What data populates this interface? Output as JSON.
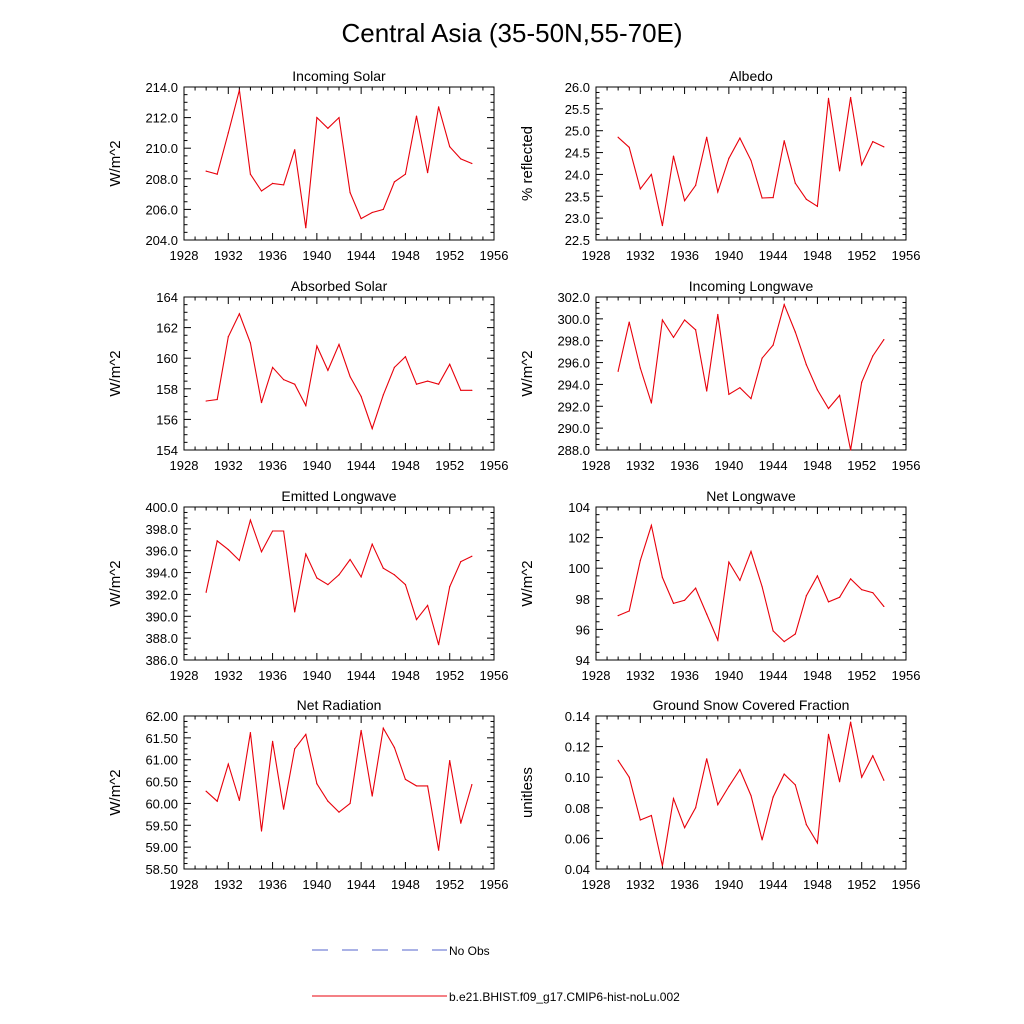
{
  "figure": {
    "title": "Central Asia (35-50N,55-70E)"
  },
  "legend": {
    "items": [
      {
        "label": "No Obs",
        "color": "#5566cc",
        "style": "dashed"
      },
      {
        "label": "b.e21.BHIST.f09_g17.CMIP6-hist-noLu.002",
        "color": "#e8000b",
        "style": "solid"
      }
    ]
  },
  "chart_data": [
    {
      "type": "line",
      "title": "Incoming Solar",
      "xlabel": "",
      "ylabel": "W/m^2",
      "xlim": [
        1928,
        1956
      ],
      "ylim": [
        204,
        214
      ],
      "xticks": [
        "1928",
        "1932",
        "1936",
        "1940",
        "1944",
        "1948",
        "1952",
        "1956"
      ],
      "yticks": [
        "204.0",
        "206.0",
        "208.0",
        "210.0",
        "212.0",
        "214.0"
      ],
      "ytick_values": [
        204,
        206,
        208,
        210,
        212,
        214
      ],
      "series": [
        {
          "color": "#e8000b",
          "x": [
            1930,
            1931,
            1932,
            1933,
            1934,
            1935,
            1936,
            1937,
            1938,
            1939,
            1940,
            1941,
            1942,
            1943,
            1944,
            1945,
            1946,
            1947,
            1948,
            1949,
            1950,
            1951,
            1952,
            1953,
            1954
          ],
          "values": [
            208.5,
            208.3,
            211.0,
            213.8,
            208.3,
            207.2,
            207.7,
            207.6,
            209.9,
            204.8,
            212.0,
            211.3,
            212.0,
            207.1,
            205.4,
            205.8,
            206.0,
            207.8,
            208.3,
            212.1,
            208.4,
            212.7,
            210.1,
            209.3,
            209.0
          ]
        }
      ]
    },
    {
      "type": "line",
      "title": "Albedo",
      "xlabel": "",
      "ylabel": "% reflected",
      "xlim": [
        1928,
        1956
      ],
      "ylim": [
        22.5,
        26
      ],
      "xticks": [
        "1928",
        "1932",
        "1936",
        "1940",
        "1944",
        "1948",
        "1952",
        "1956"
      ],
      "yticks": [
        "22.5",
        "23.0",
        "23.5",
        "24.0",
        "24.5",
        "25.0",
        "25.5",
        "26.0"
      ],
      "ytick_values": [
        22.5,
        23,
        23.5,
        24,
        24.5,
        25,
        25.5,
        26
      ],
      "series": [
        {
          "color": "#e8000b",
          "x": [
            1930,
            1931,
            1932,
            1933,
            1934,
            1935,
            1936,
            1937,
            1938,
            1939,
            1940,
            1941,
            1942,
            1943,
            1944,
            1945,
            1946,
            1947,
            1948,
            1949,
            1950,
            1951,
            1952,
            1953,
            1954
          ],
          "values": [
            24.85,
            24.62,
            23.67,
            24.0,
            22.83,
            24.42,
            23.4,
            23.75,
            24.85,
            23.6,
            24.37,
            24.83,
            24.32,
            23.46,
            23.47,
            24.77,
            23.8,
            23.43,
            23.27,
            25.74,
            24.08,
            25.76,
            24.22,
            24.75,
            24.63
          ]
        }
      ]
    },
    {
      "type": "line",
      "title": "Absorbed Solar",
      "xlabel": "",
      "ylabel": "W/m^2",
      "xlim": [
        1928,
        1956
      ],
      "ylim": [
        154,
        164
      ],
      "xticks": [
        "1928",
        "1932",
        "1936",
        "1940",
        "1944",
        "1948",
        "1952",
        "1956"
      ],
      "yticks": [
        "154",
        "156",
        "158",
        "160",
        "162",
        "164"
      ],
      "ytick_values": [
        154,
        156,
        158,
        160,
        162,
        164
      ],
      "series": [
        {
          "color": "#e8000b",
          "x": [
            1930,
            1931,
            1932,
            1933,
            1934,
            1935,
            1936,
            1937,
            1938,
            1939,
            1940,
            1941,
            1942,
            1943,
            1944,
            1945,
            1946,
            1947,
            1948,
            1949,
            1950,
            1951,
            1952,
            1953,
            1954
          ],
          "values": [
            157.2,
            157.3,
            161.4,
            162.9,
            161.0,
            157.1,
            159.4,
            158.6,
            158.3,
            156.9,
            160.8,
            159.2,
            160.9,
            158.8,
            157.5,
            155.4,
            157.6,
            159.4,
            160.1,
            158.3,
            158.5,
            158.3,
            159.6,
            157.9,
            157.9
          ]
        }
      ]
    },
    {
      "type": "line",
      "title": "Incoming Longwave",
      "xlabel": "",
      "ylabel": "W/m^2",
      "xlim": [
        1928,
        1956
      ],
      "ylim": [
        288,
        302
      ],
      "xticks": [
        "1928",
        "1932",
        "1936",
        "1940",
        "1944",
        "1948",
        "1952",
        "1956"
      ],
      "yticks": [
        "288.0",
        "290.0",
        "292.0",
        "294.0",
        "296.0",
        "298.0",
        "300.0",
        "302.0"
      ],
      "ytick_values": [
        288,
        290,
        292,
        294,
        296,
        298,
        300,
        302
      ],
      "series": [
        {
          "color": "#e8000b",
          "x": [
            1930,
            1931,
            1932,
            1933,
            1934,
            1935,
            1936,
            1937,
            1938,
            1939,
            1940,
            1941,
            1942,
            1943,
            1944,
            1945,
            1946,
            1947,
            1948,
            1949,
            1950,
            1951,
            1952,
            1953,
            1954
          ],
          "values": [
            295.2,
            299.7,
            295.5,
            292.3,
            299.9,
            298.3,
            299.9,
            299.0,
            293.4,
            300.4,
            293.1,
            293.7,
            292.7,
            296.4,
            297.6,
            301.3,
            298.8,
            295.8,
            293.5,
            291.8,
            293.0,
            288.0,
            294.2,
            296.6,
            298.1
          ]
        }
      ]
    },
    {
      "type": "line",
      "title": "Emitted Longwave",
      "xlabel": "",
      "ylabel": "W/m^2",
      "xlim": [
        1928,
        1956
      ],
      "ylim": [
        386,
        400
      ],
      "xticks": [
        "1928",
        "1932",
        "1936",
        "1940",
        "1944",
        "1948",
        "1952",
        "1956"
      ],
      "yticks": [
        "386.0",
        "388.0",
        "390.0",
        "392.0",
        "394.0",
        "396.0",
        "398.0",
        "400.0"
      ],
      "ytick_values": [
        386,
        388,
        390,
        392,
        394,
        396,
        398,
        400
      ],
      "series": [
        {
          "color": "#e8000b",
          "x": [
            1930,
            1931,
            1932,
            1933,
            1934,
            1935,
            1936,
            1937,
            1938,
            1939,
            1940,
            1941,
            1942,
            1943,
            1944,
            1945,
            1946,
            1947,
            1948,
            1949,
            1950,
            1951,
            1952,
            1953,
            1954
          ],
          "values": [
            392.2,
            396.9,
            396.1,
            395.1,
            398.8,
            395.9,
            397.8,
            397.8,
            390.4,
            395.7,
            393.5,
            392.9,
            393.8,
            395.2,
            393.6,
            396.6,
            394.4,
            393.8,
            392.9,
            389.7,
            391.0,
            387.4,
            392.7,
            395.0,
            395.5
          ]
        }
      ]
    },
    {
      "type": "line",
      "title": "Net Longwave",
      "xlabel": "",
      "ylabel": "W/m^2",
      "xlim": [
        1928,
        1956
      ],
      "ylim": [
        94,
        104
      ],
      "xticks": [
        "1928",
        "1932",
        "1936",
        "1940",
        "1944",
        "1948",
        "1952",
        "1956"
      ],
      "yticks": [
        "94",
        "96",
        "98",
        "100",
        "102",
        "104"
      ],
      "ytick_values": [
        94,
        96,
        98,
        100,
        102,
        104
      ],
      "series": [
        {
          "color": "#e8000b",
          "x": [
            1930,
            1931,
            1932,
            1933,
            1934,
            1935,
            1936,
            1937,
            1938,
            1939,
            1940,
            1941,
            1942,
            1943,
            1944,
            1945,
            1946,
            1947,
            1948,
            1949,
            1950,
            1951,
            1952,
            1953,
            1954
          ],
          "values": [
            96.9,
            97.2,
            100.5,
            102.8,
            99.4,
            97.7,
            97.9,
            98.7,
            97.0,
            95.3,
            100.4,
            99.2,
            101.1,
            98.8,
            95.9,
            95.2,
            95.7,
            98.2,
            99.5,
            97.8,
            98.1,
            99.3,
            98.6,
            98.4,
            97.5
          ]
        }
      ]
    },
    {
      "type": "line",
      "title": "Net Radiation",
      "xlabel": "",
      "ylabel": "W/m^2",
      "xlim": [
        1928,
        1956
      ],
      "ylim": [
        58.5,
        62
      ],
      "xticks": [
        "1928",
        "1932",
        "1936",
        "1940",
        "1944",
        "1948",
        "1952",
        "1956"
      ],
      "yticks": [
        "58.50",
        "59.00",
        "59.50",
        "60.00",
        "60.50",
        "61.00",
        "61.50",
        "62.00"
      ],
      "ytick_values": [
        58.5,
        59,
        59.5,
        60,
        60.5,
        61,
        61.5,
        62
      ],
      "series": [
        {
          "color": "#e8000b",
          "x": [
            1930,
            1931,
            1932,
            1933,
            1934,
            1935,
            1936,
            1937,
            1938,
            1939,
            1940,
            1941,
            1942,
            1943,
            1944,
            1945,
            1946,
            1947,
            1948,
            1949,
            1950,
            1951,
            1952,
            1953,
            1954
          ],
          "values": [
            60.28,
            60.05,
            60.9,
            60.07,
            61.62,
            59.37,
            61.42,
            59.87,
            61.25,
            61.58,
            60.45,
            60.05,
            59.8,
            60.0,
            61.67,
            60.17,
            61.72,
            61.28,
            60.55,
            60.4,
            60.4,
            58.93,
            60.98,
            59.55,
            60.43
          ]
        }
      ]
    },
    {
      "type": "line",
      "title": "Ground Snow Covered Fraction",
      "xlabel": "",
      "ylabel": "unitless",
      "xlim": [
        1928,
        1956
      ],
      "ylim": [
        0.04,
        0.14
      ],
      "xticks": [
        "1928",
        "1932",
        "1936",
        "1940",
        "1944",
        "1948",
        "1952",
        "1956"
      ],
      "yticks": [
        "0.04",
        "0.06",
        "0.08",
        "0.10",
        "0.12",
        "0.14"
      ],
      "ytick_values": [
        0.04,
        0.06,
        0.08,
        0.1,
        0.12,
        0.14
      ],
      "series": [
        {
          "color": "#e8000b",
          "x": [
            1930,
            1931,
            1932,
            1933,
            1934,
            1935,
            1936,
            1937,
            1938,
            1939,
            1940,
            1941,
            1942,
            1943,
            1944,
            1945,
            1946,
            1947,
            1948,
            1949,
            1950,
            1951,
            1952,
            1953,
            1954
          ],
          "values": [
            0.111,
            0.1,
            0.072,
            0.075,
            0.042,
            0.086,
            0.067,
            0.08,
            0.112,
            0.082,
            0.094,
            0.105,
            0.088,
            0.059,
            0.087,
            0.102,
            0.095,
            0.069,
            0.057,
            0.128,
            0.097,
            0.136,
            0.1,
            0.114,
            0.098
          ]
        }
      ]
    }
  ]
}
